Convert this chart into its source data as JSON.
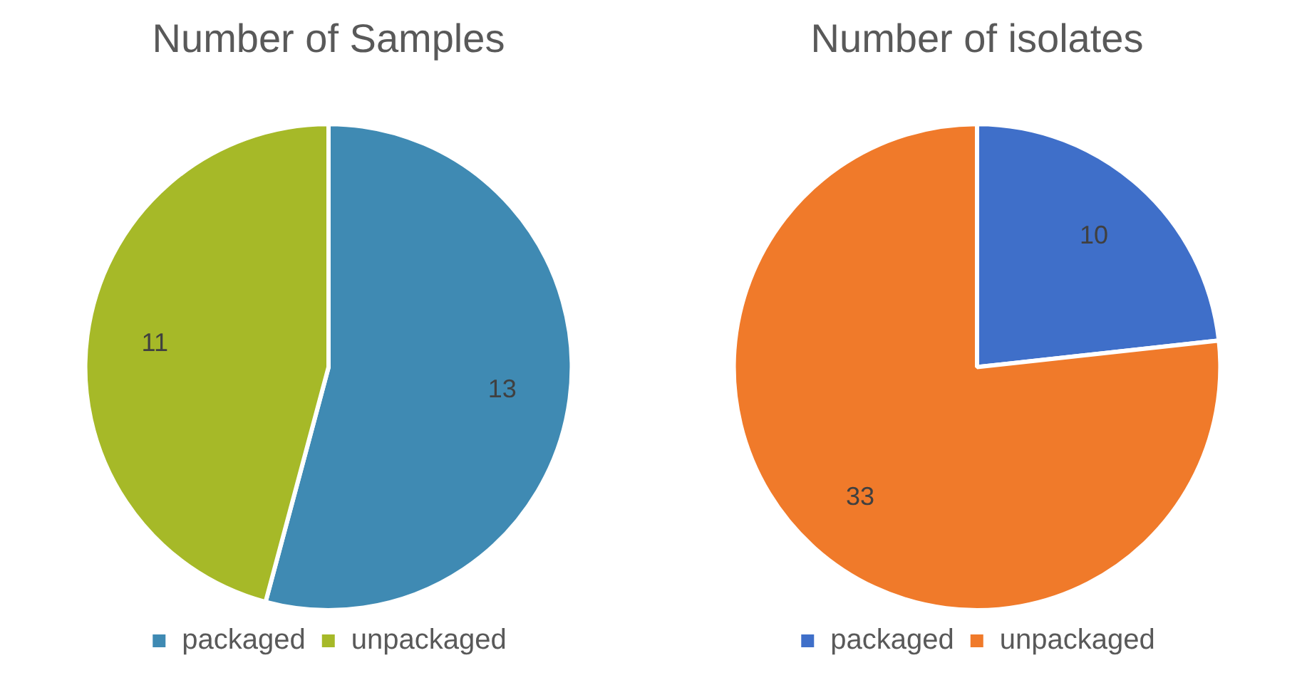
{
  "chart_data": [
    {
      "type": "pie",
      "title": "Number of Samples",
      "categories": [
        "packaged",
        "unpackaged"
      ],
      "values": [
        13,
        11
      ],
      "colors": [
        "#3f8ab3",
        "#a6b928"
      ],
      "legend": "bottom",
      "data_labels": true
    },
    {
      "type": "pie",
      "title": "Number of isolates",
      "categories": [
        "packaged",
        "unpackaged"
      ],
      "values": [
        10,
        33
      ],
      "colors": [
        "#3f6fc9",
        "#f07a2a"
      ],
      "legend": "bottom",
      "data_labels": true
    }
  ]
}
